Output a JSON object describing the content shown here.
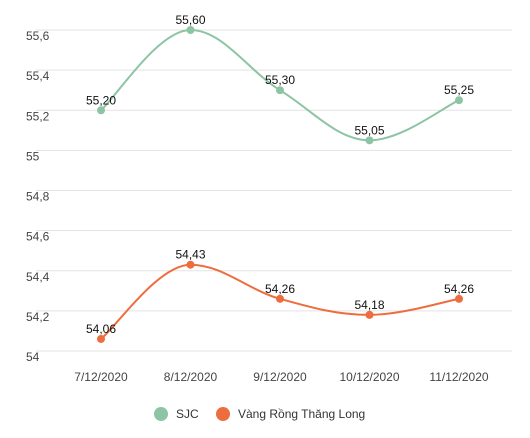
{
  "chart_data": {
    "type": "line",
    "categories": [
      "7/12/2020",
      "8/12/2020",
      "9/12/2020",
      "10/12/2020",
      "11/12/2020"
    ],
    "ylim": [
      54,
      55.6
    ],
    "yticks": [
      "55,6",
      "55,4",
      "55,2",
      "55",
      "54,8",
      "54,6",
      "54,4",
      "54,2",
      "54"
    ],
    "grid": true,
    "legend_position": "bottom",
    "series": [
      {
        "name": "SJC",
        "color": "#8cc4a4",
        "values": [
          55.2,
          55.6,
          55.3,
          55.05,
          55.25
        ],
        "labels": [
          "55,20",
          "55,60",
          "55,30",
          "55,05",
          "55,25"
        ]
      },
      {
        "name": "Vàng Rồng Thăng Long",
        "color": "#ee6d3e",
        "values": [
          54.06,
          54.43,
          54.26,
          54.18,
          54.26
        ],
        "labels": [
          "54,06",
          "54,43",
          "54,26",
          "54,18",
          "54,26"
        ]
      }
    ]
  }
}
